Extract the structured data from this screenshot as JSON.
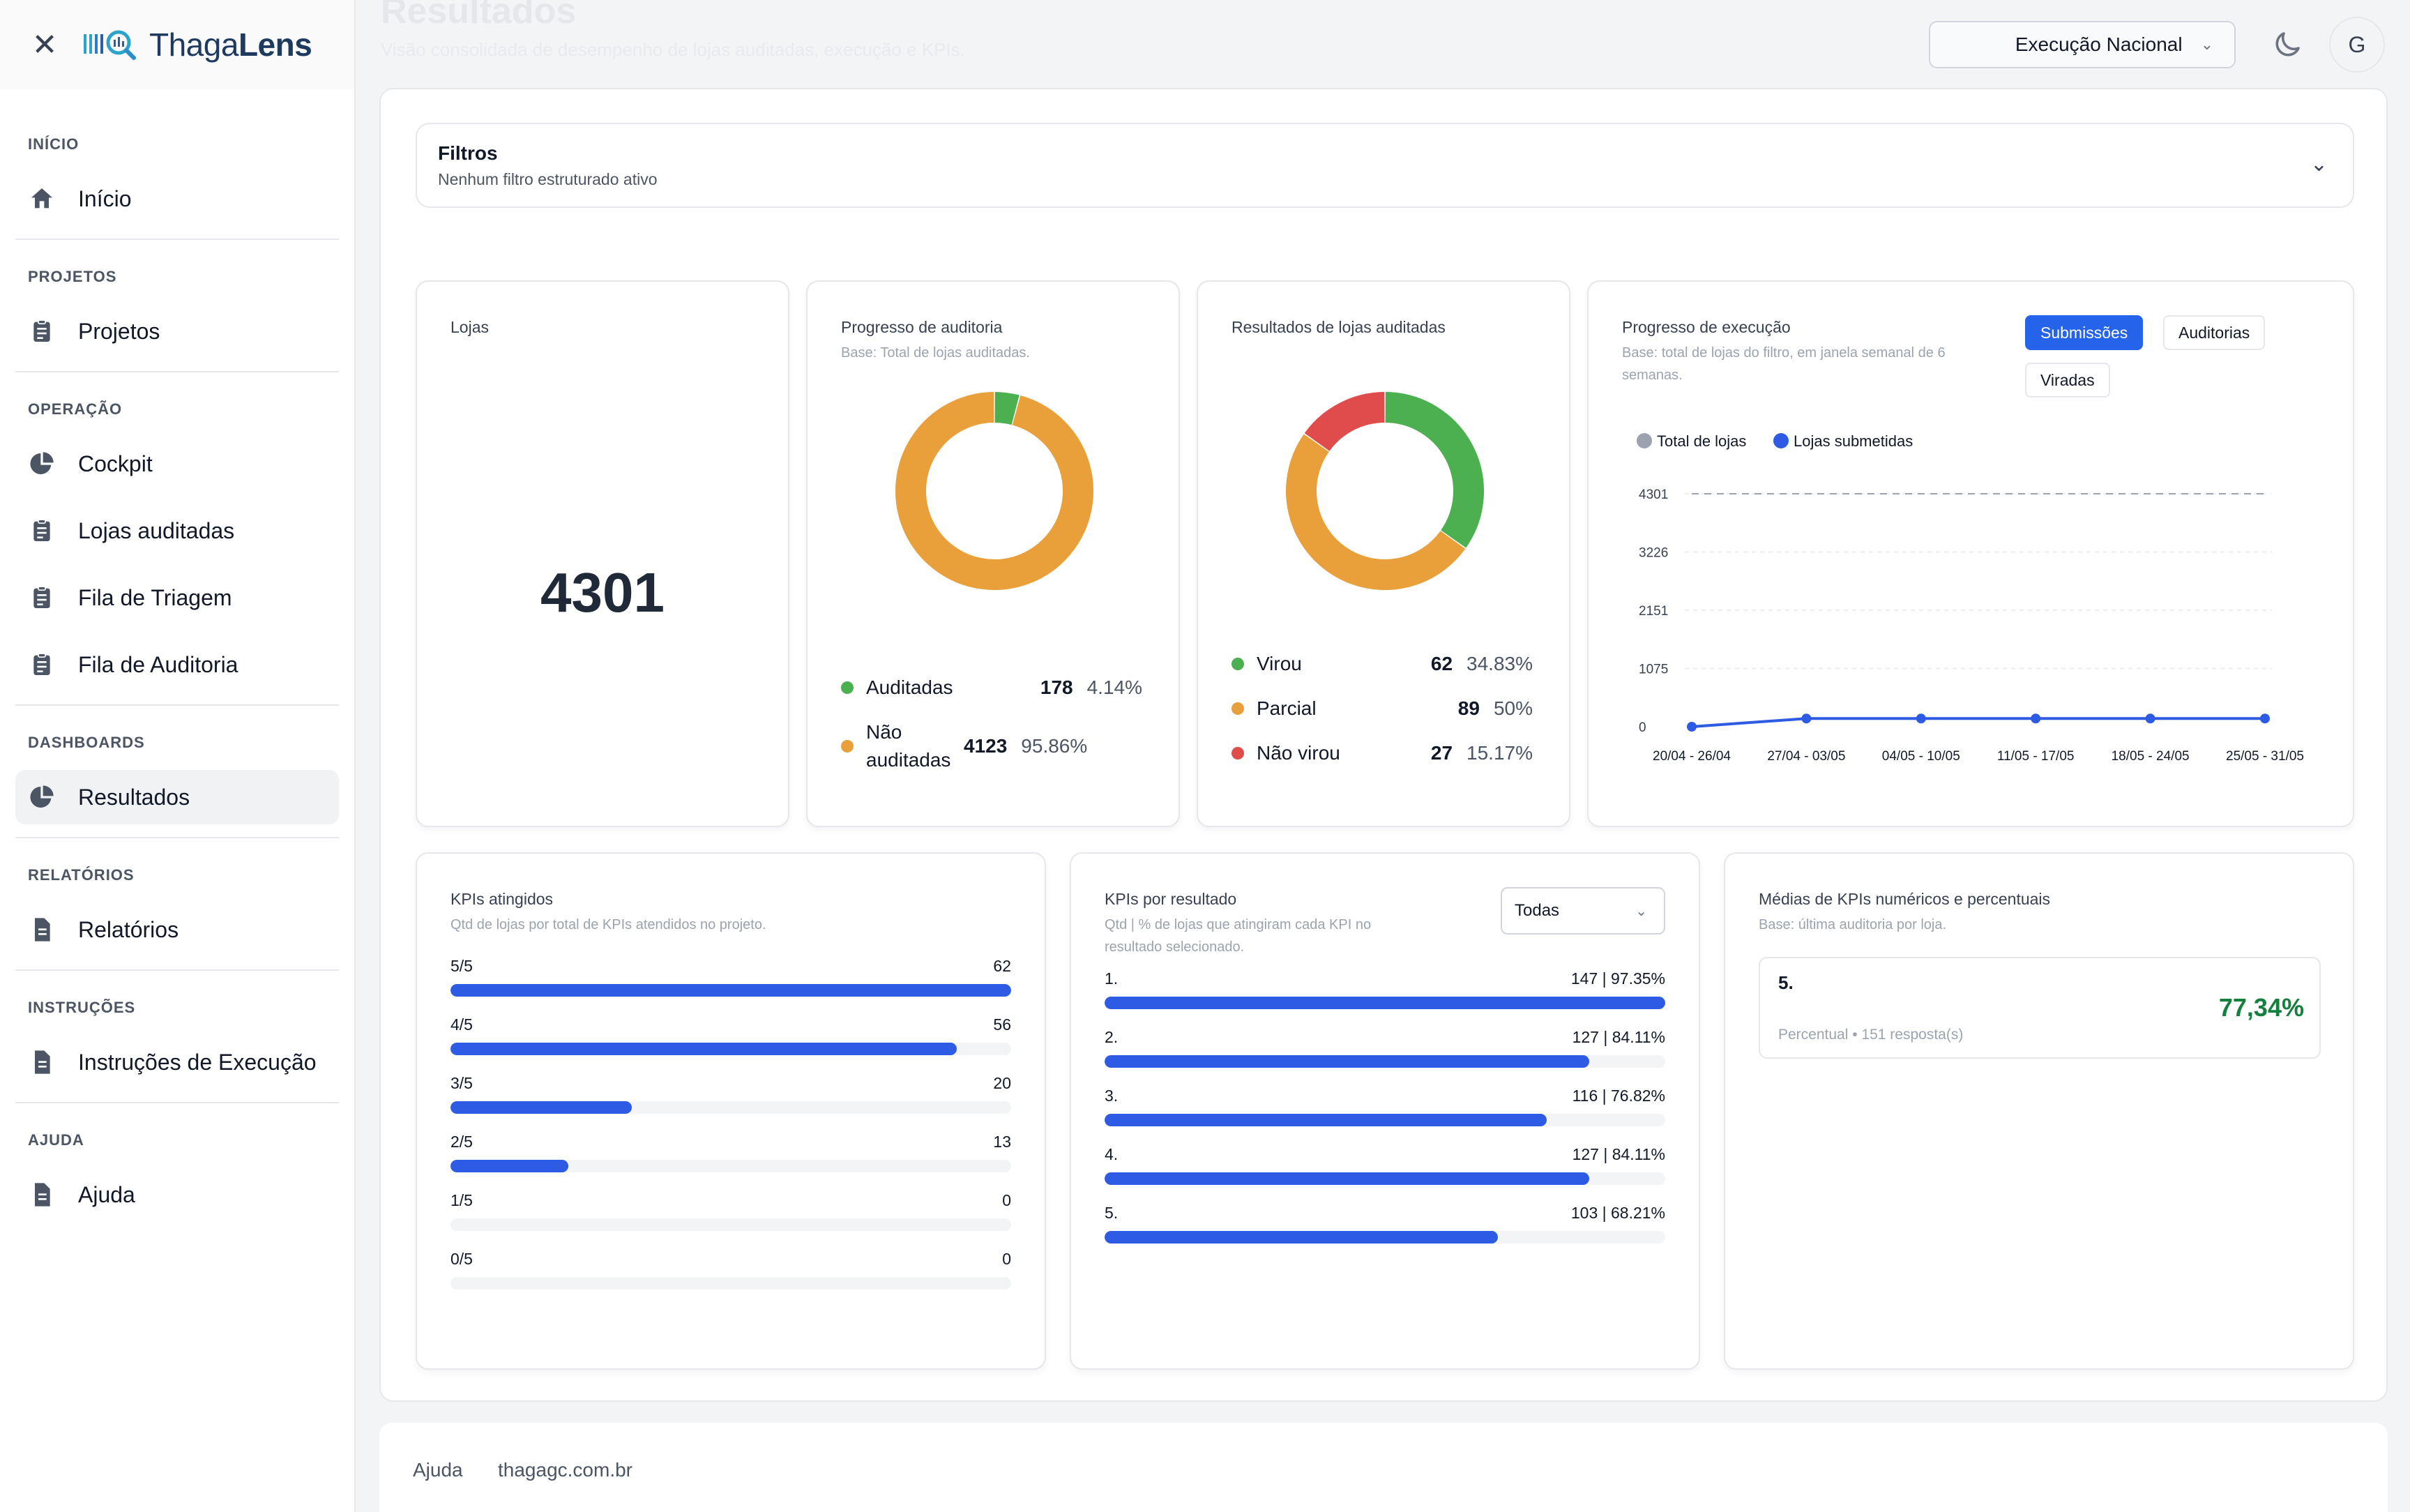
{
  "app": {
    "logo_text_a": "Thaga",
    "logo_text_b": "Lens"
  },
  "topbar": {
    "page_title": "Resultados",
    "page_subtitle": "Visão consolidada de desempenho de lojas auditadas, execução e KPIs.",
    "execution_select": "Execução Nacional",
    "avatar_initial": "G"
  },
  "sidebar": {
    "sections": [
      {
        "head": "INÍCIO",
        "items": [
          {
            "label": "Início",
            "icon": "home-icon"
          }
        ]
      },
      {
        "head": "PROJETOS",
        "items": [
          {
            "label": "Projetos",
            "icon": "clipboard-icon"
          }
        ]
      },
      {
        "head": "OPERAÇÃO",
        "items": [
          {
            "label": "Cockpit",
            "icon": "pie-icon"
          },
          {
            "label": "Lojas auditadas",
            "icon": "clipboard-icon"
          },
          {
            "label": "Fila de Triagem",
            "icon": "clipboard-icon"
          },
          {
            "label": "Fila de Auditoria",
            "icon": "clipboard-icon"
          }
        ]
      },
      {
        "head": "DASHBOARDS",
        "items": [
          {
            "label": "Resultados",
            "icon": "pie-icon",
            "active": true
          }
        ]
      },
      {
        "head": "RELATÓRIOS",
        "items": [
          {
            "label": "Relatórios",
            "icon": "document-icon"
          }
        ]
      },
      {
        "head": "INSTRUÇÕES",
        "items": [
          {
            "label": "Instruções de Execução",
            "icon": "document-icon"
          }
        ]
      },
      {
        "head": "AJUDA",
        "items": [
          {
            "label": "Ajuda",
            "icon": "document-icon"
          }
        ]
      }
    ]
  },
  "filters": {
    "title": "Filtros",
    "subtitle": "Nenhum filtro estruturado ativo"
  },
  "lojas": {
    "title": "Lojas",
    "value": "4301"
  },
  "audit_progress": {
    "title": "Progresso de auditoria",
    "subtitle": "Base: Total de lojas auditadas.",
    "items": [
      {
        "label": "Auditadas",
        "count": "178",
        "pct": "4.14%",
        "color": "#4caf50",
        "value": 178
      },
      {
        "label": "Não auditadas",
        "count": "4123",
        "pct": "95.86%",
        "color": "#eaa03a",
        "value": 4123
      }
    ]
  },
  "audit_results": {
    "title": "Resultados de lojas auditadas",
    "items": [
      {
        "label": "Virou",
        "count": "62",
        "pct": "34.83%",
        "color": "#4caf50",
        "value": 62
      },
      {
        "label": "Parcial",
        "count": "89",
        "pct": "50%",
        "color": "#eaa03a",
        "value": 89
      },
      {
        "label": "Não virou",
        "count": "27",
        "pct": "15.17%",
        "color": "#e04b4b",
        "value": 27
      }
    ]
  },
  "execution": {
    "title": "Progresso de execução",
    "subtitle_1": "Base: total de lojas do filtro, em janela semanal de 6",
    "subtitle_2": "semanas.",
    "tabs": [
      "Submissões",
      "Auditorias",
      "Viradas"
    ],
    "active_tab": "Submissões",
    "legend": [
      {
        "name": "Total de lojas",
        "color": "#9ca3af"
      },
      {
        "name": "Lojas submetidas",
        "color": "#2d5be3"
      }
    ]
  },
  "chart_data": {
    "type": "line",
    "x": [
      "20/04 - 26/04",
      "27/04 - 03/05",
      "04/05 - 10/05",
      "11/05 - 17/05",
      "18/05 - 24/05",
      "25/05 - 31/05"
    ],
    "yticks": [
      0,
      1075,
      2151,
      3226,
      4301
    ],
    "ylim": [
      0,
      4301
    ],
    "grid": true,
    "legend_position": "top-left",
    "series": [
      {
        "name": "Total de lojas",
        "values": [
          4301,
          4301,
          4301,
          4301,
          4301,
          4301
        ],
        "color": "#9ca3af",
        "style": "dashed"
      },
      {
        "name": "Lojas submetidas",
        "values": [
          0,
          151,
          151,
          151,
          151,
          151
        ],
        "color": "#2d5be3"
      }
    ]
  },
  "kpis_atingidos": {
    "title": "KPIs atingidos",
    "subtitle": "Qtd de lojas por total de KPIs atendidos no projeto.",
    "rows": [
      {
        "label": "5/5",
        "value": "62",
        "frac": 1.0
      },
      {
        "label": "4/5",
        "value": "56",
        "frac": 0.903
      },
      {
        "label": "3/5",
        "value": "20",
        "frac": 0.323
      },
      {
        "label": "2/5",
        "value": "13",
        "frac": 0.21
      },
      {
        "label": "1/5",
        "value": "0",
        "frac": 0
      },
      {
        "label": "0/5",
        "value": "0",
        "frac": 0
      }
    ]
  },
  "kpis_resultado": {
    "title": "KPIs por resultado",
    "subtitle_1": "Qtd | % de lojas que atingiram cada KPI no",
    "subtitle_2": "resultado selecionado.",
    "filter_value": "Todas",
    "rows": [
      {
        "label": "1.",
        "value": "147 | 97.35%",
        "frac": 1.0
      },
      {
        "label": "2.",
        "value": "127 | 84.11%",
        "frac": 0.864
      },
      {
        "label": "3.",
        "value": "116 | 76.82%",
        "frac": 0.789
      },
      {
        "label": "4.",
        "value": "127 | 84.11%",
        "frac": 0.864
      },
      {
        "label": "5.",
        "value": "103 | 68.21%",
        "frac": 0.701
      }
    ]
  },
  "kpi_medias": {
    "title": "Médias de KPIs numéricos e percentuais",
    "subtitle": "Base: última auditoria por loja.",
    "item": {
      "name": "5.",
      "value": "77,34%",
      "footer": "Percentual • 151 resposta(s)"
    }
  },
  "footer": {
    "link_help": "Ajuda",
    "link_site": "thagagc.com.br"
  }
}
